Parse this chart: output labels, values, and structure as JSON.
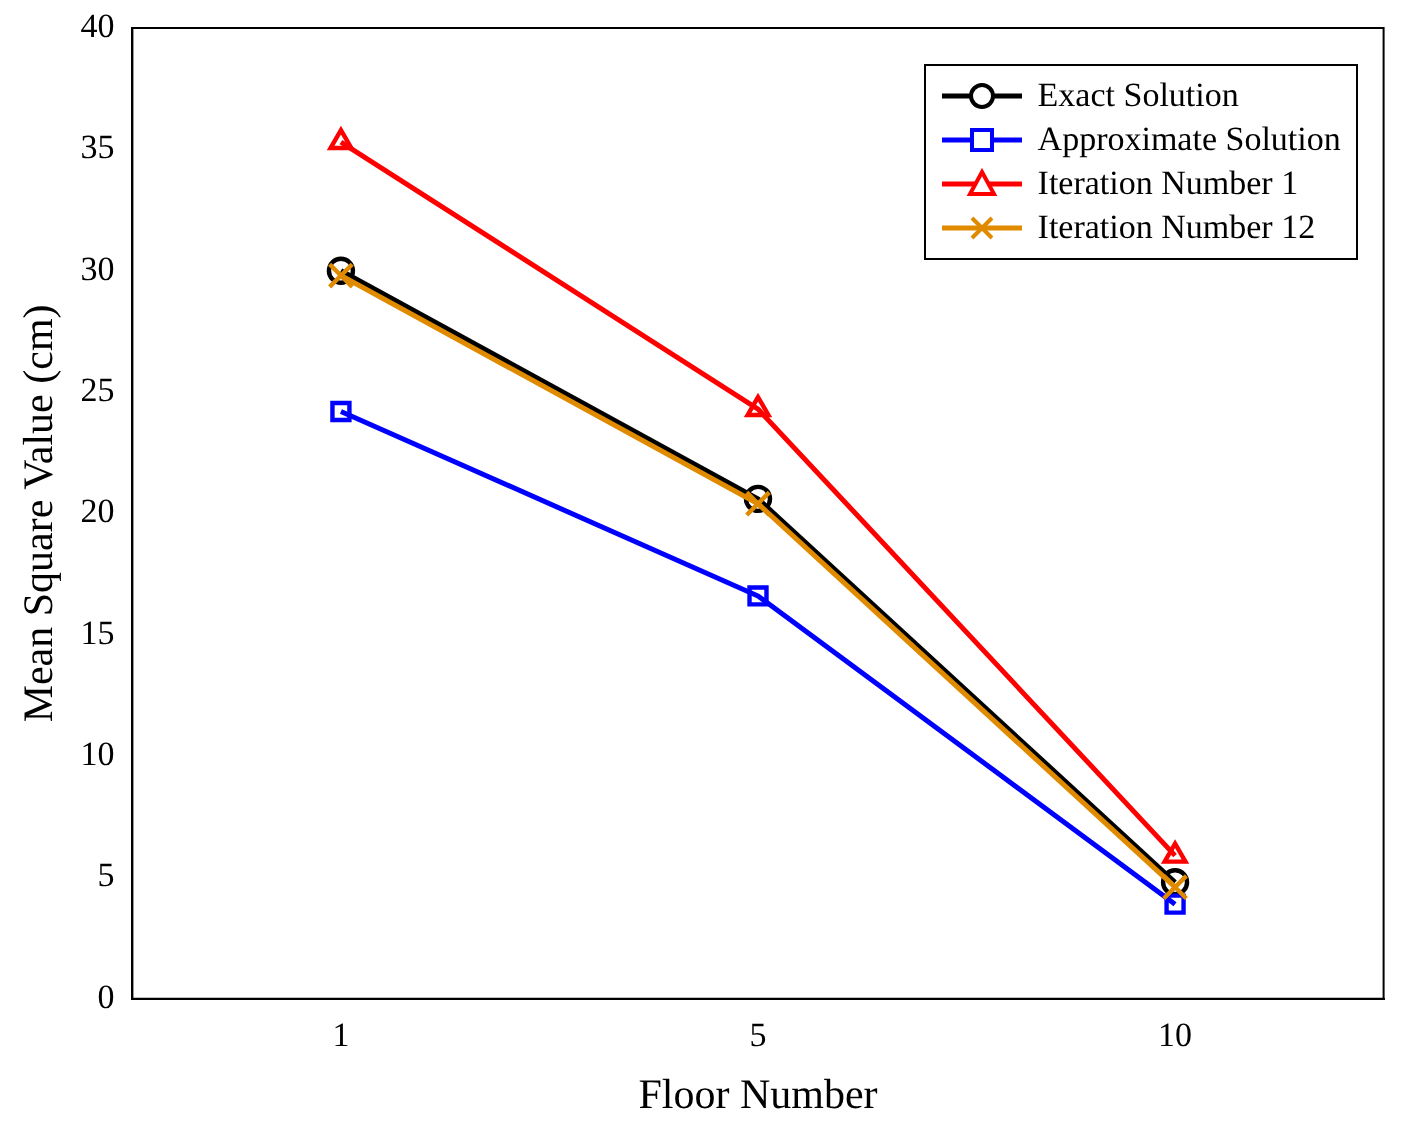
{
  "chart_data": {
    "type": "line",
    "xlabel": "Floor Number",
    "ylabel": "Mean Square Value (cm)",
    "categories": [
      "1",
      "5",
      "10"
    ],
    "ylim": [
      0,
      40
    ],
    "yticks": [
      0,
      5,
      10,
      15,
      20,
      25,
      30,
      35,
      40
    ],
    "grid": false,
    "legend": "top right",
    "line_style": "solid",
    "series": [
      {
        "name": "Exact Solution",
        "color": "#000000",
        "marker": "circle",
        "values": [
          30.0,
          20.6,
          4.8
        ]
      },
      {
        "name": "Approximate Solution",
        "color": "#0000ff",
        "marker": "square",
        "values": [
          24.2,
          16.6,
          3.9
        ]
      },
      {
        "name": "Iteration Number 1",
        "color": "#ff0000",
        "marker": "triangle",
        "values": [
          35.3,
          24.3,
          5.9
        ]
      },
      {
        "name": "Iteration Number 12",
        "color": "#e08a00",
        "marker": "cross",
        "values": [
          29.8,
          20.4,
          4.6
        ]
      }
    ]
  }
}
